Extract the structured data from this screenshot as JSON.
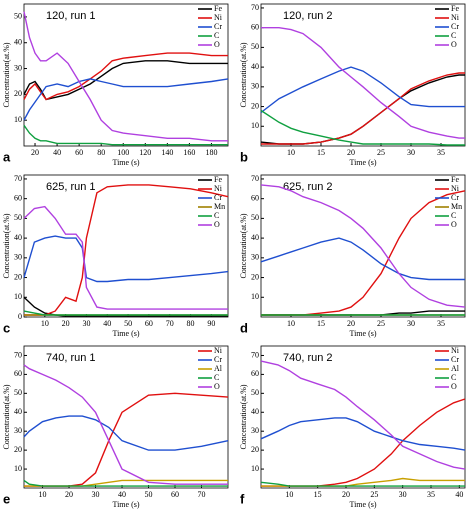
{
  "chart_data": [
    {
      "type": "line",
      "panel_label": "a",
      "annotation": "120, run 1",
      "x_label": "Time (s)",
      "y_label": "Concentration(at.%)",
      "x": [
        10,
        15,
        20,
        25,
        30,
        40,
        50,
        60,
        70,
        80,
        90,
        100,
        120,
        140,
        160,
        180,
        195
      ],
      "series": [
        {
          "name": "Fe",
          "color": "#000000",
          "values": [
            20,
            24,
            25,
            22,
            18,
            19,
            20,
            22,
            24,
            27,
            30,
            32,
            33,
            33,
            32,
            32,
            32
          ]
        },
        {
          "name": "Ni",
          "color": "#e01010",
          "values": [
            18,
            22,
            24,
            21,
            18,
            20,
            21,
            23,
            26,
            29,
            33,
            34,
            35,
            36,
            36,
            35,
            35
          ]
        },
        {
          "name": "Cr",
          "color": "#1f4fd0",
          "values": [
            10,
            14,
            17,
            20,
            23,
            24,
            23,
            25,
            26,
            25,
            24,
            23,
            23,
            23,
            24,
            25,
            26
          ]
        },
        {
          "name": "C",
          "color": "#10a040",
          "values": [
            8,
            5,
            3,
            2,
            2,
            1,
            1,
            1,
            1,
            1,
            0.5,
            0.5,
            0.5,
            0.5,
            0.5,
            0.5,
            0.5
          ]
        },
        {
          "name": "O",
          "color": "#b040e0",
          "values": [
            52,
            42,
            36,
            33,
            33,
            36,
            32,
            25,
            18,
            10,
            6,
            5,
            4,
            3,
            3,
            2,
            2
          ]
        }
      ],
      "xlim": [
        10,
        195
      ],
      "xticks": [
        20,
        40,
        60,
        80,
        100,
        120,
        140,
        160,
        180
      ],
      "ylim": [
        0,
        55
      ],
      "yticks": [
        10,
        20,
        30,
        40,
        50
      ]
    },
    {
      "type": "line",
      "panel_label": "b",
      "annotation": "120, run 2",
      "x_label": "Time (s)",
      "y_label": "Concentration(at.%)",
      "x": [
        5,
        8,
        10,
        12,
        15,
        18,
        20,
        22,
        25,
        28,
        30,
        33,
        36,
        38,
        39
      ],
      "series": [
        {
          "name": "Fe",
          "color": "#000000",
          "values": [
            2,
            1,
            1,
            1,
            2,
            4,
            6,
            10,
            17,
            24,
            28,
            32,
            35,
            36,
            36
          ]
        },
        {
          "name": "Ni",
          "color": "#e01010",
          "values": [
            1,
            1,
            1,
            1,
            2,
            4,
            6,
            10,
            17,
            24,
            29,
            33,
            36,
            37,
            37
          ]
        },
        {
          "name": "Cr",
          "color": "#1f4fd0",
          "values": [
            17,
            24,
            27,
            30,
            34,
            38,
            40,
            38,
            32,
            25,
            21,
            20,
            20,
            20,
            20
          ]
        },
        {
          "name": "C",
          "color": "#10a040",
          "values": [
            18,
            12,
            9,
            7,
            5,
            3,
            2,
            1,
            1,
            1,
            1,
            1,
            0.5,
            0.5,
            0.5
          ]
        },
        {
          "name": "O",
          "color": "#b040e0",
          "values": [
            60,
            60,
            59,
            57,
            50,
            40,
            35,
            30,
            22,
            15,
            10,
            7,
            5,
            4,
            4
          ]
        }
      ],
      "xlim": [
        5,
        39
      ],
      "xticks": [
        10,
        15,
        20,
        25,
        30,
        35
      ],
      "ylim": [
        0,
        72
      ],
      "yticks": [
        10,
        20,
        30,
        40,
        50,
        60,
        70
      ]
    },
    {
      "type": "line",
      "panel_label": "c",
      "annotation": "625, run 1",
      "x_label": "Time (s)",
      "y_label": "Concentration(at.%)",
      "x": [
        0,
        5,
        10,
        15,
        20,
        25,
        28,
        30,
        35,
        40,
        50,
        60,
        70,
        80,
        90,
        98
      ],
      "series": [
        {
          "name": "Fe",
          "color": "#000000",
          "values": [
            10,
            5,
            2,
            1,
            0.5,
            0.5,
            0.5,
            0.5,
            0.5,
            0.5,
            0.5,
            0.5,
            0.5,
            0.5,
            0.5,
            0.5
          ]
        },
        {
          "name": "Ni",
          "color": "#e01010",
          "values": [
            1,
            1,
            1,
            3,
            10,
            8,
            20,
            40,
            63,
            66,
            67,
            67,
            66,
            65,
            63,
            61
          ]
        },
        {
          "name": "Cr",
          "color": "#1f4fd0",
          "values": [
            20,
            38,
            40,
            41,
            40,
            40,
            35,
            20,
            18,
            18,
            19,
            19,
            20,
            21,
            22,
            23
          ]
        },
        {
          "name": "Mn",
          "color": "#a08000",
          "values": [
            1,
            1,
            1,
            1,
            1,
            1,
            1,
            1,
            1,
            1,
            1,
            1,
            1,
            1,
            1,
            1
          ]
        },
        {
          "name": "C",
          "color": "#10a040",
          "values": [
            3,
            2,
            1,
            1,
            1,
            1,
            1,
            1,
            1,
            1,
            1,
            1,
            1,
            1,
            1,
            1
          ]
        },
        {
          "name": "O",
          "color": "#b040e0",
          "values": [
            50,
            55,
            56,
            50,
            42,
            42,
            38,
            15,
            5,
            4,
            4,
            4,
            4,
            4,
            4,
            4
          ]
        }
      ],
      "xlim": [
        0,
        98
      ],
      "xticks": [
        10,
        20,
        30,
        40,
        50,
        60,
        70,
        80,
        90
      ],
      "ylim": [
        0,
        72
      ],
      "yticks": [
        0,
        10,
        20,
        30,
        40,
        50,
        60,
        70
      ]
    },
    {
      "type": "line",
      "panel_label": "d",
      "annotation": "625, run 2",
      "x_label": "Time (s)",
      "y_label": "Concentration(at.%)",
      "x": [
        5,
        8,
        10,
        12,
        15,
        18,
        20,
        22,
        25,
        28,
        30,
        33,
        36,
        39
      ],
      "series": [
        {
          "name": "Fe",
          "color": "#000000",
          "values": [
            1,
            1,
            1,
            1,
            1,
            1,
            1,
            1,
            1,
            2,
            2,
            3,
            3,
            3
          ]
        },
        {
          "name": "Ni",
          "color": "#e01010",
          "values": [
            1,
            1,
            1,
            1,
            2,
            3,
            5,
            10,
            22,
            40,
            50,
            58,
            62,
            64
          ]
        },
        {
          "name": "Cr",
          "color": "#1f4fd0",
          "values": [
            28,
            31,
            33,
            35,
            38,
            40,
            38,
            34,
            27,
            22,
            20,
            19,
            19,
            19
          ]
        },
        {
          "name": "Mn",
          "color": "#a08000",
          "values": [
            1,
            1,
            1,
            1,
            1,
            1,
            1,
            1,
            1,
            1,
            1,
            1,
            1,
            1
          ]
        },
        {
          "name": "C",
          "color": "#10a040",
          "values": [
            1,
            1,
            1,
            1,
            1,
            1,
            1,
            1,
            1,
            1,
            1,
            1,
            1,
            1
          ]
        },
        {
          "name": "O",
          "color": "#b040e0",
          "values": [
            67,
            66,
            64,
            61,
            58,
            54,
            50,
            45,
            35,
            22,
            15,
            9,
            6,
            5
          ]
        }
      ],
      "xlim": [
        5,
        39
      ],
      "xticks": [
        10,
        15,
        20,
        25,
        30,
        35
      ],
      "ylim": [
        0,
        72
      ],
      "yticks": [
        10,
        20,
        30,
        40,
        50,
        60,
        70
      ]
    },
    {
      "type": "line",
      "panel_label": "e",
      "annotation": "740, run 1",
      "x_label": "Time (s)",
      "y_label": "Concentration(at.%)",
      "x": [
        3,
        5,
        10,
        15,
        20,
        25,
        30,
        35,
        40,
        50,
        60,
        70,
        80
      ],
      "series": [
        {
          "name": "Ni",
          "color": "#e01010",
          "values": [
            1,
            1,
            1,
            1,
            1,
            2,
            8,
            25,
            40,
            49,
            50,
            49,
            48
          ]
        },
        {
          "name": "Cr",
          "color": "#1f4fd0",
          "values": [
            27,
            30,
            35,
            37,
            38,
            38,
            36,
            32,
            25,
            20,
            20,
            22,
            25
          ]
        },
        {
          "name": "Al",
          "color": "#c8a000",
          "values": [
            1,
            1,
            1,
            1,
            1,
            1,
            2,
            3,
            4,
            4,
            4,
            4,
            4
          ]
        },
        {
          "name": "C",
          "color": "#10a040",
          "values": [
            4,
            2,
            1,
            1,
            1,
            1,
            1,
            1,
            1,
            1,
            1,
            1,
            1
          ]
        },
        {
          "name": "O",
          "color": "#b040e0",
          "values": [
            65,
            63,
            60,
            57,
            53,
            48,
            40,
            25,
            10,
            3,
            2,
            2,
            2
          ]
        }
      ],
      "xlim": [
        3,
        80
      ],
      "xticks": [
        10,
        20,
        30,
        40,
        50,
        60,
        70
      ],
      "ylim": [
        0,
        75
      ],
      "yticks": [
        10,
        20,
        30,
        40,
        50,
        60,
        70
      ]
    },
    {
      "type": "line",
      "panel_label": "f",
      "annotation": "740, run 2",
      "x_label": "Time (s)",
      "y_label": "Concentration(at.%)",
      "x": [
        5,
        8,
        10,
        12,
        15,
        18,
        20,
        22,
        25,
        28,
        30,
        33,
        36,
        39,
        41
      ],
      "series": [
        {
          "name": "Ni",
          "color": "#e01010",
          "values": [
            1,
            1,
            1,
            1,
            1,
            2,
            3,
            5,
            10,
            18,
            25,
            33,
            40,
            45,
            47
          ]
        },
        {
          "name": "Cr",
          "color": "#1f4fd0",
          "values": [
            26,
            30,
            33,
            35,
            36,
            37,
            37,
            35,
            30,
            27,
            25,
            23,
            22,
            21,
            20
          ]
        },
        {
          "name": "Al",
          "color": "#c8a000",
          "values": [
            1,
            1,
            1,
            1,
            1,
            1,
            1,
            2,
            3,
            4,
            5,
            4,
            4,
            4,
            4
          ]
        },
        {
          "name": "C",
          "color": "#10a040",
          "values": [
            3,
            2,
            1,
            1,
            1,
            1,
            1,
            1,
            1,
            1,
            1,
            1,
            1,
            1,
            1
          ]
        },
        {
          "name": "O",
          "color": "#b040e0",
          "values": [
            67,
            65,
            62,
            58,
            55,
            52,
            48,
            43,
            36,
            28,
            22,
            18,
            14,
            11,
            10
          ]
        }
      ],
      "xlim": [
        5,
        41
      ],
      "xticks": [
        10,
        15,
        20,
        25,
        30,
        35,
        40
      ],
      "ylim": [
        0,
        75
      ],
      "yticks": [
        10,
        20,
        30,
        40,
        50,
        60,
        70
      ]
    }
  ]
}
